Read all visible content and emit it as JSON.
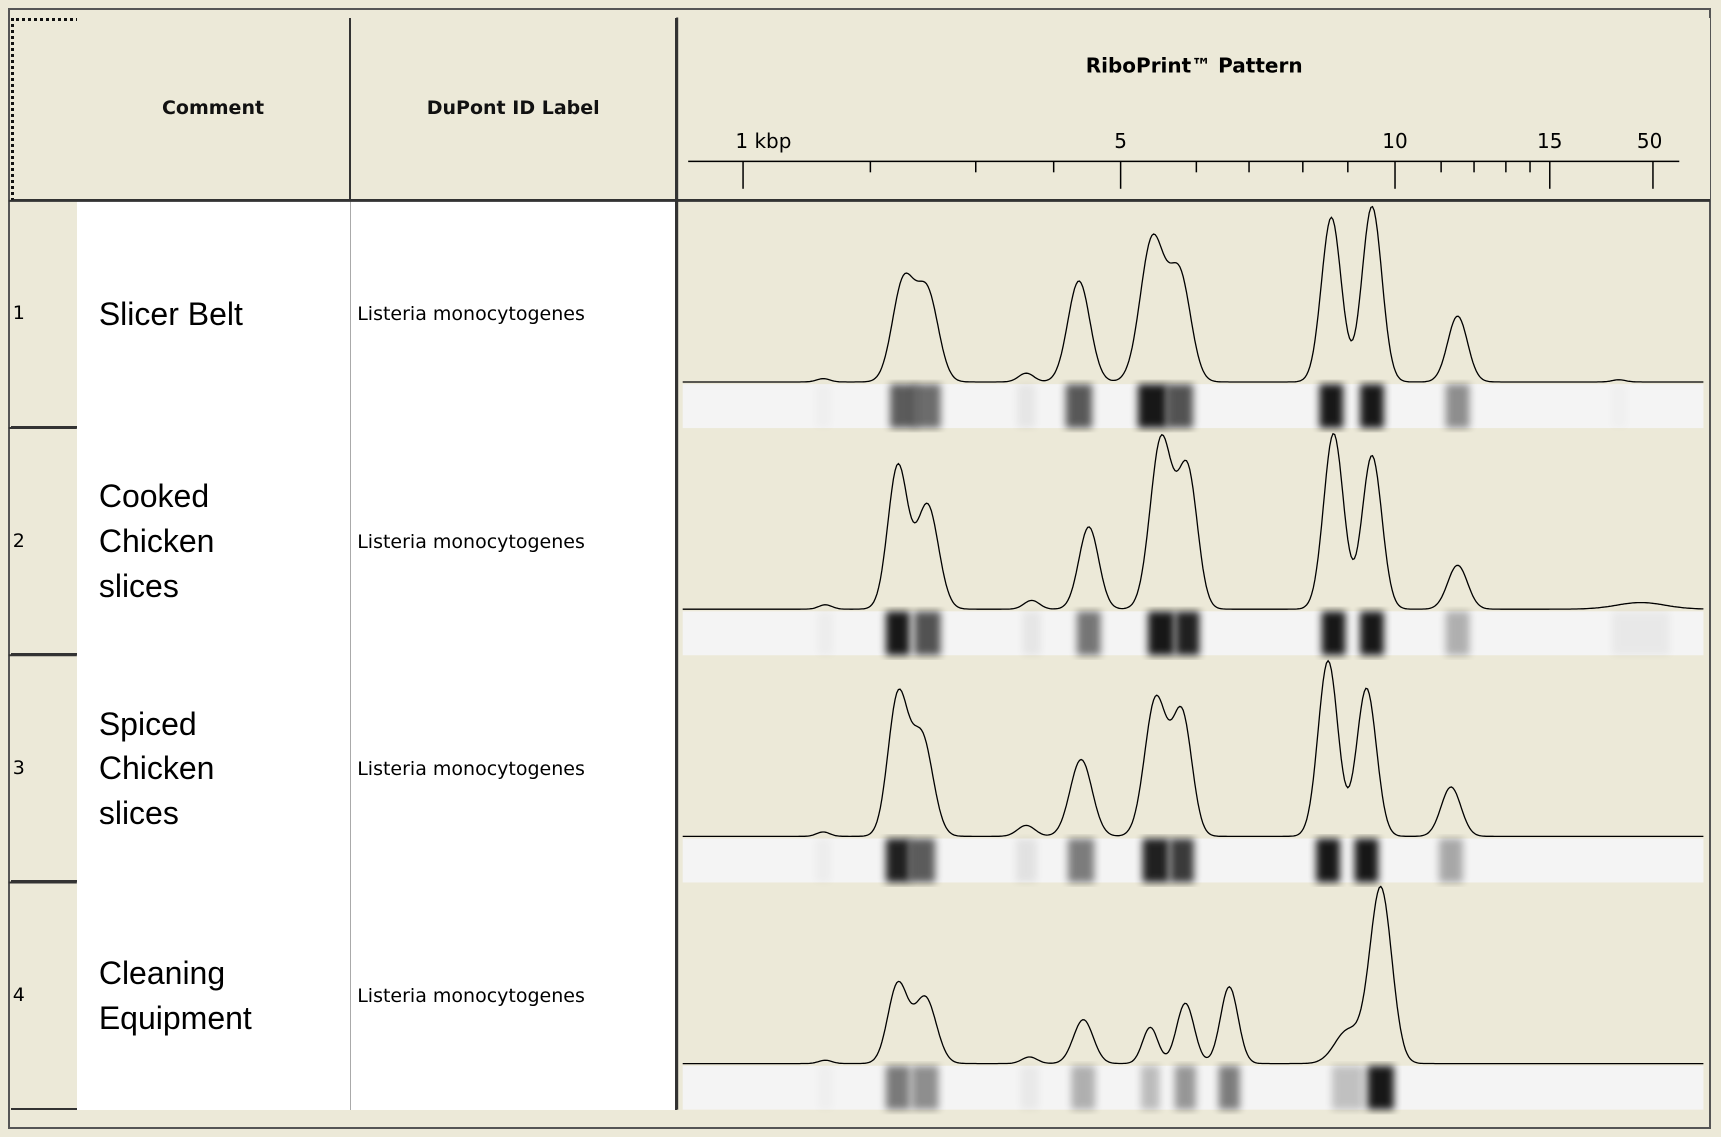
{
  "columns": {
    "comment": "Comment",
    "label": "DuPont ID Label",
    "pattern": "RiboPrint™ Pattern"
  },
  "scale": {
    "ticks": [
      "1 kbp",
      "5",
      "10",
      "15",
      "50"
    ]
  },
  "rows": [
    {
      "number": "1",
      "comment": "Slicer Belt",
      "label": "Listeria monocytogenes"
    },
    {
      "number": "2",
      "comment": "Cooked Chicken slices",
      "label": "Listeria monocytogenes"
    },
    {
      "number": "3",
      "comment": "Spiced Chicken slices",
      "label": "Listeria monocytogenes"
    },
    {
      "number": "4",
      "comment": "Cleaning Equipment",
      "label": "Listeria monocytogenes"
    }
  ]
}
